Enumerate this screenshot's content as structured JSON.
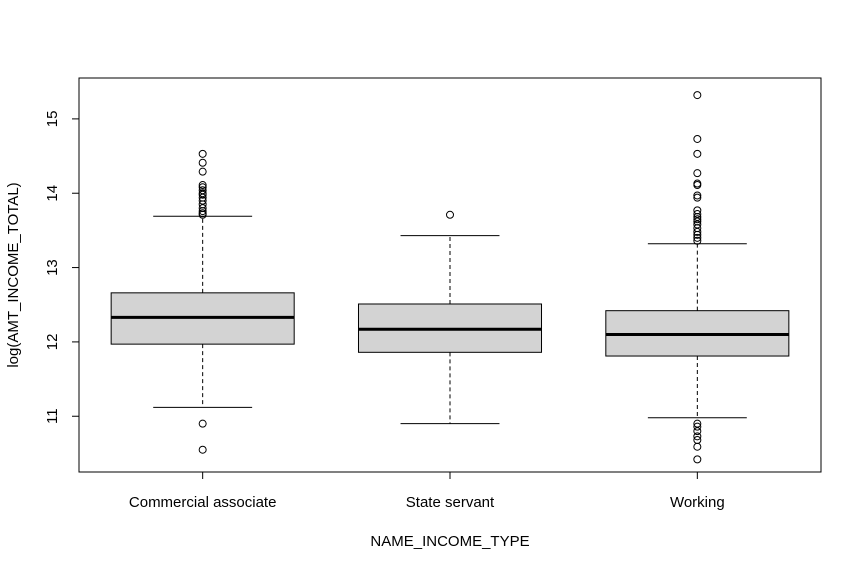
{
  "chart_data": {
    "type": "boxplot",
    "xlabel": "NAME_INCOME_TYPE",
    "ylabel": "log(AMT_INCOME_TOTAL)",
    "ylim": [
      10.25,
      15.55
    ],
    "yticks": [
      11,
      12,
      13,
      14,
      15
    ],
    "grid": false,
    "box_color": "#d3d3d3",
    "categories": [
      "Commercial associate",
      "State servant",
      "Working"
    ],
    "boxes": [
      {
        "category": "Commercial associate",
        "whisker_low": 11.12,
        "q1": 11.97,
        "median": 12.33,
        "q3": 12.66,
        "whisker_high": 13.69,
        "outliers": [
          10.55,
          10.9,
          13.71,
          13.73,
          13.76,
          13.8,
          13.85,
          13.9,
          13.94,
          13.98,
          14.0,
          14.04,
          14.08,
          14.11,
          14.29,
          14.41,
          14.53
        ]
      },
      {
        "category": "State servant",
        "whisker_low": 10.9,
        "q1": 11.86,
        "median": 12.17,
        "q3": 12.51,
        "whisker_high": 13.43,
        "outliers": [
          13.71
        ]
      },
      {
        "category": "Working",
        "whisker_low": 10.98,
        "q1": 11.81,
        "median": 12.1,
        "q3": 12.42,
        "whisker_high": 13.32,
        "outliers": [
          10.42,
          10.59,
          10.68,
          10.73,
          10.8,
          10.86,
          10.9,
          13.36,
          13.4,
          13.44,
          13.48,
          13.53,
          13.58,
          13.62,
          13.65,
          13.68,
          13.72,
          13.77,
          13.94,
          13.97,
          14.11,
          14.13,
          14.27,
          14.53,
          14.73,
          15.32
        ]
      }
    ]
  }
}
